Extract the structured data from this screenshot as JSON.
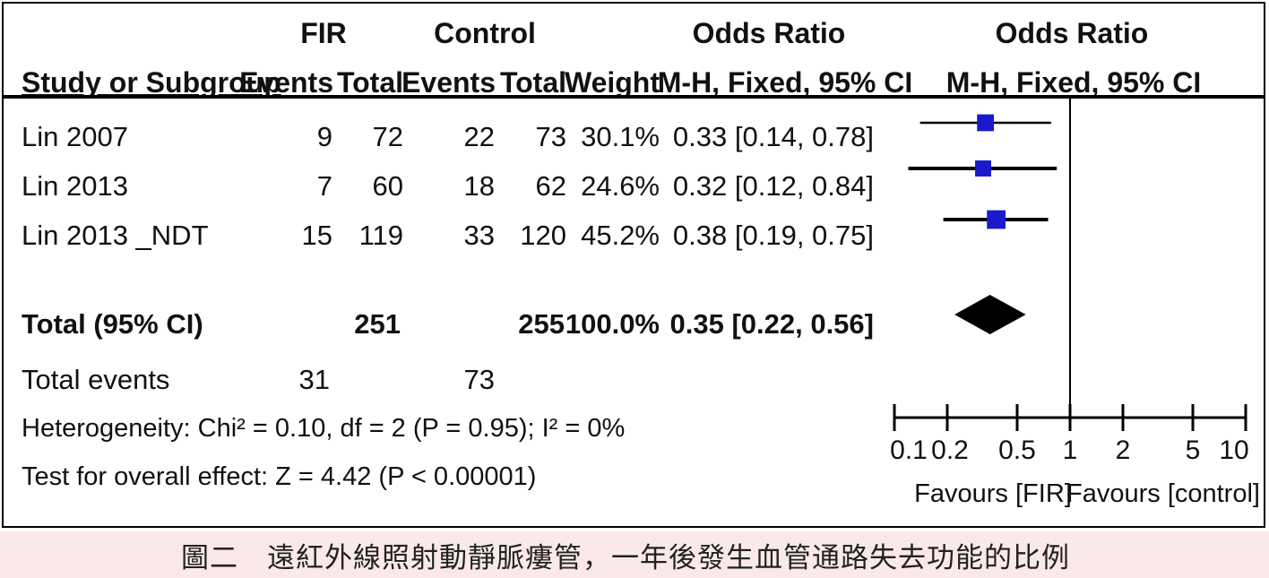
{
  "caption": "圖二　遠紅外線照射動靜脈瘻管，一年後發生血管通路失去功能的比例",
  "colors": {
    "marker": "#1a1acc",
    "line": "#000000",
    "caption_bg": "#fbe9ea"
  },
  "headers": {
    "group1": "FIR",
    "group2": "Control",
    "or_left": "Odds Ratio",
    "or_right": "Odds Ratio",
    "study": "Study or Subgroup",
    "events1": "Events",
    "total1": "Total",
    "events2": "Events",
    "total2": "Total",
    "weight": "Weight",
    "method_left": "M-H, Fixed, 95% CI",
    "method_right": "M-H, Fixed, 95% CI"
  },
  "studies": [
    {
      "name": "Lin 2007",
      "events1": "9",
      "total1": "72",
      "events2": "22",
      "total2": "73",
      "weight": "30.1%",
      "ci_text": "0.33 [0.14, 0.78]"
    },
    {
      "name": "Lin 2013",
      "events1": "7",
      "total1": "60",
      "events2": "18",
      "total2": "62",
      "weight": "24.6%",
      "ci_text": "0.32 [0.12, 0.84]"
    },
    {
      "name": "Lin 2013 _NDT",
      "events1": "15",
      "total1": "119",
      "events2": "33",
      "total2": "120",
      "weight": "45.2%",
      "ci_text": "0.38 [0.19, 0.75]"
    }
  ],
  "total": {
    "label": "Total (95% CI)",
    "total1": "251",
    "total2": "255",
    "weight": "100.0%",
    "ci_text": "0.35 [0.22, 0.56]"
  },
  "total_events": {
    "label": "Total events",
    "events1": "31",
    "events2": "73"
  },
  "heterogeneity": "Heterogeneity: Chi² = 0.10, df = 2 (P = 0.95); I² = 0%",
  "overall_effect": "Test for overall effect: Z = 4.42 (P < 0.00001)",
  "axis": {
    "ticks": [
      "0.1",
      "0.2",
      "0.5",
      "1",
      "2",
      "5",
      "10"
    ],
    "favours_left": "Favours [FIR]",
    "favours_right": "Favours [control]"
  },
  "chart_data": {
    "type": "forest",
    "scale": "log",
    "xlim": [
      0.1,
      10
    ],
    "null_line": 1,
    "series": [
      {
        "name": "Lin 2007",
        "or": 0.33,
        "lower": 0.14,
        "upper": 0.78,
        "weight": 30.1
      },
      {
        "name": "Lin 2013",
        "or": 0.32,
        "lower": 0.12,
        "upper": 0.84,
        "weight": 24.6
      },
      {
        "name": "Lin 2013 _NDT",
        "or": 0.38,
        "lower": 0.19,
        "upper": 0.75,
        "weight": 45.2
      }
    ],
    "pooled": {
      "or": 0.35,
      "lower": 0.22,
      "upper": 0.56
    }
  }
}
